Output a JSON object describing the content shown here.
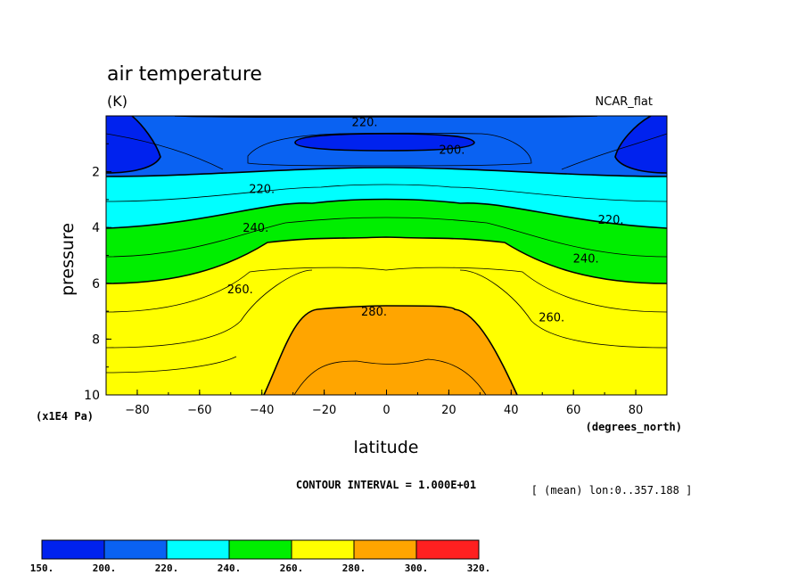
{
  "chart_data": {
    "type": "contour",
    "title": "air temperature",
    "units": "(K)",
    "style_tag": "NCAR_flat",
    "xlabel": "latitude",
    "xunits": "(degrees_north)",
    "ylabel": "pressure",
    "yunits": "(x1E4 Pa)",
    "xlim": [
      -90,
      90
    ],
    "ylim": [
      10,
      0
    ],
    "xticks": [
      -80,
      -60,
      -40,
      -20,
      0,
      20,
      40,
      60,
      80
    ],
    "xtick_labels": [
      "−80",
      "−60",
      "−40",
      "−20",
      "0",
      "20",
      "40",
      "60",
      "80"
    ],
    "yticks": [
      2,
      4,
      6,
      8,
      10
    ],
    "ytick_labels": [
      "2",
      "4",
      "6",
      "8",
      "10"
    ],
    "contour_interval_text": "CONTOUR INTERVAL = 1.000E+01",
    "slice_note": "[ (mean) lon:0..357.188 ]",
    "contour_labels": [
      {
        "text": "220.",
        "lat": -7,
        "p": 0.2
      },
      {
        "text": "200.",
        "lat": 21,
        "p": 1.2
      },
      {
        "text": "220.",
        "lat": -40,
        "p": 2.6
      },
      {
        "text": "220.",
        "lat": 72,
        "p": 3.7
      },
      {
        "text": "240.",
        "lat": -42,
        "p": 4.0
      },
      {
        "text": "240.",
        "lat": 64,
        "p": 5.1
      },
      {
        "text": "260.",
        "lat": -47,
        "p": 6.2
      },
      {
        "text": "260.",
        "lat": 53,
        "p": 7.2
      },
      {
        "text": "280.",
        "lat": -4,
        "p": 7.0
      }
    ],
    "colorbar": {
      "levels": [
        "150.",
        "200.",
        "220.",
        "240.",
        "260.",
        "280.",
        "300.",
        "320."
      ],
      "colors": [
        "#0022ee",
        "#0a62f2",
        "#00ffff",
        "#00ee00",
        "#ffff00",
        "#ffa500",
        "#ff2020"
      ]
    },
    "band_colors": [
      "#0022ee",
      "#0a62f2",
      "#00ffff",
      "#00ee00",
      "#ffff00",
      "#ffa500"
    ]
  }
}
